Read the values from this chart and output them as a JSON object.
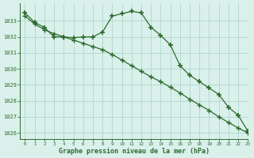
{
  "line1_x": [
    0,
    1,
    2,
    3,
    4,
    5,
    6,
    7,
    8,
    9,
    10,
    11,
    12,
    13,
    14,
    15,
    16,
    17,
    18,
    19,
    20,
    21,
    22,
    23
  ],
  "line1_y": [
    1033.5,
    1032.9,
    1032.6,
    1032.0,
    1032.0,
    1031.95,
    1032.0,
    1032.0,
    1032.3,
    1033.3,
    1033.45,
    1033.6,
    1033.5,
    1032.6,
    1032.1,
    1031.5,
    1030.2,
    1029.6,
    1029.2,
    1028.8,
    1028.4,
    1027.6,
    1027.1,
    1026.1
  ],
  "line2_x": [
    0,
    1,
    2,
    3,
    4,
    5,
    6,
    7,
    8,
    9,
    10,
    11,
    12,
    13,
    14,
    15,
    16,
    17,
    18,
    19,
    20,
    21,
    22,
    23
  ],
  "line2_y": [
    1033.3,
    1032.8,
    1032.45,
    1032.2,
    1032.0,
    1031.8,
    1031.6,
    1031.4,
    1031.2,
    1030.9,
    1030.55,
    1030.2,
    1029.85,
    1029.5,
    1029.2,
    1028.85,
    1028.5,
    1028.1,
    1027.75,
    1027.4,
    1027.0,
    1026.65,
    1026.3,
    1026.0
  ],
  "line_color": "#2d6a2d",
  "bg_color": "#d9f0eb",
  "grid_color": "#b0d8cc",
  "xlabel": "Graphe pression niveau de la mer (hPa)",
  "ylim": [
    1025.6,
    1034.1
  ],
  "xlim": [
    -0.5,
    23
  ],
  "yticks": [
    1026,
    1027,
    1028,
    1029,
    1030,
    1031,
    1032,
    1033
  ],
  "xticks": [
    0,
    1,
    2,
    3,
    4,
    5,
    6,
    7,
    8,
    9,
    10,
    11,
    12,
    13,
    14,
    15,
    16,
    17,
    18,
    19,
    20,
    21,
    22,
    23
  ],
  "marker1": "+",
  "marker2": "+",
  "markersize1": 5,
  "markersize2": 4
}
